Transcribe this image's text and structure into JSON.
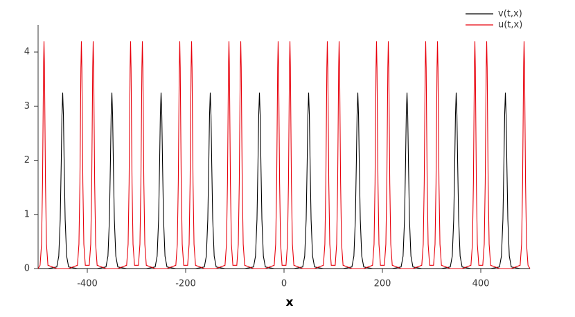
{
  "chart_data": {
    "type": "line",
    "xlabel": "x",
    "xlim": [
      -500,
      500
    ],
    "xticks": [
      -400,
      -200,
      0,
      200,
      400
    ],
    "ylim": [
      0,
      4.5
    ],
    "yticks": [
      0,
      1,
      2,
      3,
      4
    ],
    "legend": "top-right",
    "x": [
      -500,
      -496,
      -493,
      -491,
      -490,
      -489,
      -488,
      -487,
      -486,
      -485,
      -483,
      -480,
      -462,
      -458,
      -455,
      -453,
      -451.5,
      -450,
      -448.5,
      -447,
      -445,
      -442,
      -438,
      -420,
      -417,
      -415,
      -414,
      -413,
      -412,
      -411,
      -410,
      -409,
      -407,
      -404,
      -396,
      -393,
      -391,
      -390,
      -389,
      -388,
      -387,
      -386,
      -385,
      -383,
      -380,
      -362,
      -358,
      -355,
      -353,
      -351.5,
      -350,
      -348.5,
      -347,
      -345,
      -342,
      -338,
      -320,
      -317,
      -315,
      -314,
      -313,
      -312,
      -311,
      -310,
      -309,
      -307,
      -304,
      -296,
      -293,
      -291,
      -290,
      -289,
      -288,
      -287,
      -286,
      -285,
      -283,
      -280,
      -262,
      -258,
      -255,
      -253,
      -251.5,
      -250,
      -248.5,
      -247,
      -245,
      -242,
      -238,
      -220,
      -217,
      -215,
      -214,
      -213,
      -212,
      -211,
      -210,
      -209,
      -207,
      -204,
      -196,
      -193,
      -191,
      -190,
      -189,
      -188,
      -187,
      -186,
      -185,
      -183,
      -180,
      -162,
      -158,
      -155,
      -153,
      -151.5,
      -150,
      -148.5,
      -147,
      -145,
      -142,
      -138,
      -120,
      -117,
      -115,
      -114,
      -113,
      -112,
      -111,
      -110,
      -109,
      -107,
      -104,
      -96,
      -93,
      -91,
      -90,
      -89,
      -88,
      -87,
      -86,
      -85,
      -83,
      -80,
      -62,
      -58,
      -55,
      -53,
      -51.5,
      -50,
      -48.5,
      -47,
      -45,
      -42,
      -38,
      -20,
      -17,
      -15,
      -14,
      -13,
      -12,
      -11,
      -10,
      -9,
      -7,
      -4,
      4,
      7,
      9,
      10,
      11,
      12,
      13,
      14,
      15,
      17,
      20,
      38,
      42,
      45,
      47,
      48.5,
      50,
      51.5,
      53,
      55,
      58,
      62,
      80,
      83,
      85,
      86,
      87,
      88,
      89,
      90,
      91,
      93,
      96,
      104,
      107,
      109,
      110,
      111,
      112,
      113,
      114,
      115,
      117,
      120,
      138,
      142,
      145,
      147,
      148.5,
      150,
      151.5,
      153,
      155,
      158,
      162,
      180,
      183,
      185,
      186,
      187,
      188,
      189,
      190,
      191,
      193,
      196,
      204,
      207,
      209,
      210,
      211,
      212,
      213,
      214,
      215,
      217,
      220,
      238,
      242,
      245,
      247,
      248.5,
      250,
      251.5,
      253,
      255,
      258,
      262,
      280,
      283,
      285,
      286,
      287,
      288,
      289,
      290,
      291,
      293,
      296,
      304,
      307,
      309,
      310,
      311,
      312,
      313,
      314,
      315,
      317,
      320,
      338,
      342,
      345,
      347,
      348.5,
      350,
      351.5,
      353,
      355,
      358,
      362,
      380,
      383,
      385,
      386,
      387,
      388,
      389,
      390,
      391,
      393,
      396,
      404,
      407,
      409,
      410,
      411,
      412,
      413,
      414,
      415,
      417,
      420,
      438,
      442,
      445,
      447,
      448.5,
      450,
      451.5,
      453,
      455,
      458,
      462,
      480,
      483,
      485,
      486,
      487,
      488,
      489,
      490,
      491,
      493,
      496,
      500
    ],
    "series": [
      {
        "name": "v(t,x)",
        "color": "#000000",
        "values": [
          0,
          0,
          0,
          0,
          0,
          0,
          0,
          0,
          0,
          0,
          0,
          0,
          0.03,
          0.23,
          0.91,
          1.94,
          2.83,
          3.25,
          2.83,
          1.94,
          0.91,
          0.23,
          0.03,
          0,
          0,
          0,
          0,
          0,
          0,
          0,
          0,
          0,
          0,
          0,
          0,
          0,
          0,
          0,
          0,
          0,
          0,
          0,
          0,
          0,
          0,
          0.03,
          0.23,
          0.91,
          1.94,
          2.83,
          3.25,
          2.83,
          1.94,
          0.91,
          0.23,
          0.03,
          0,
          0,
          0,
          0,
          0,
          0,
          0,
          0,
          0,
          0,
          0,
          0,
          0,
          0,
          0,
          0,
          0,
          0,
          0,
          0,
          0,
          0,
          0.03,
          0.23,
          0.91,
          1.94,
          2.83,
          3.25,
          2.83,
          1.94,
          0.91,
          0.23,
          0.03,
          0,
          0,
          0,
          0,
          0,
          0,
          0,
          0,
          0,
          0,
          0,
          0,
          0,
          0,
          0,
          0,
          0,
          0,
          0,
          0,
          0,
          0,
          0.03,
          0.23,
          0.91,
          1.94,
          2.83,
          3.25,
          2.83,
          1.94,
          0.91,
          0.23,
          0.03,
          0,
          0,
          0,
          0,
          0,
          0,
          0,
          0,
          0,
          0,
          0,
          0,
          0,
          0,
          0,
          0,
          0,
          0,
          0,
          0,
          0,
          0,
          0.03,
          0.23,
          0.91,
          1.94,
          2.83,
          3.25,
          2.83,
          1.94,
          0.91,
          0.23,
          0.03,
          0,
          0,
          0,
          0,
          0,
          0,
          0,
          0,
          0,
          0,
          0,
          0,
          0,
          0,
          0,
          0,
          0,
          0,
          0,
          0,
          0,
          0,
          0.03,
          0.23,
          0.91,
          1.94,
          2.83,
          3.25,
          2.83,
          1.94,
          0.91,
          0.23,
          0.03,
          0,
          0,
          0,
          0,
          0,
          0,
          0,
          0,
          0,
          0,
          0,
          0,
          0,
          0,
          0,
          0,
          0,
          0,
          0,
          0,
          0,
          0,
          0.03,
          0.23,
          0.91,
          1.94,
          2.83,
          3.25,
          2.83,
          1.94,
          0.91,
          0.23,
          0.03,
          0,
          0,
          0,
          0,
          0,
          0,
          0,
          0,
          0,
          0,
          0,
          0,
          0,
          0,
          0,
          0,
          0,
          0,
          0,
          0,
          0,
          0,
          0.03,
          0.23,
          0.91,
          1.94,
          2.83,
          3.25,
          2.83,
          1.94,
          0.91,
          0.23,
          0.03,
          0,
          0,
          0,
          0,
          0,
          0,
          0,
          0,
          0,
          0,
          0,
          0,
          0,
          0,
          0,
          0,
          0,
          0,
          0,
          0,
          0,
          0,
          0.03,
          0.23,
          0.91,
          1.94,
          2.83,
          3.25,
          2.83,
          1.94,
          0.91,
          0.23,
          0.03,
          0,
          0,
          0,
          0,
          0,
          0,
          0,
          0,
          0,
          0,
          0,
          0,
          0,
          0,
          0,
          0,
          0,
          0,
          0,
          0,
          0,
          0,
          0.03,
          0.23,
          0.91,
          1.94,
          2.83,
          3.25,
          2.83,
          1.94,
          0.91,
          0.23,
          0.03,
          0,
          0,
          0,
          0,
          0,
          0,
          0,
          0,
          0,
          0,
          0,
          0
        ]
      },
      {
        "name": "u(t,x)",
        "color": "#e8000b",
        "values": [
          0,
          0.06,
          0.45,
          1.58,
          2.62,
          3.71,
          4.2,
          3.71,
          2.62,
          1.58,
          0.45,
          0.06,
          0,
          0,
          0,
          0,
          0,
          0,
          0,
          0,
          0,
          0,
          0,
          0.06,
          0.45,
          1.58,
          2.62,
          3.71,
          4.2,
          3.71,
          2.62,
          1.58,
          0.45,
          0.06,
          0.06,
          0.45,
          1.58,
          2.62,
          3.71,
          4.2,
          3.71,
          2.62,
          1.58,
          0.45,
          0.06,
          0,
          0,
          0,
          0,
          0,
          0,
          0,
          0,
          0,
          0,
          0,
          0.06,
          0.45,
          1.58,
          2.62,
          3.71,
          4.2,
          3.71,
          2.62,
          1.58,
          0.45,
          0.06,
          0.06,
          0.45,
          1.58,
          2.62,
          3.71,
          4.2,
          3.71,
          2.62,
          1.58,
          0.45,
          0.06,
          0,
          0,
          0,
          0,
          0,
          0,
          0,
          0,
          0,
          0,
          0,
          0.06,
          0.45,
          1.58,
          2.62,
          3.71,
          4.2,
          3.71,
          2.62,
          1.58,
          0.45,
          0.06,
          0.06,
          0.45,
          1.58,
          2.62,
          3.71,
          4.2,
          3.71,
          2.62,
          1.58,
          0.45,
          0.06,
          0,
          0,
          0,
          0,
          0,
          0,
          0,
          0,
          0,
          0,
          0,
          0.06,
          0.45,
          1.58,
          2.62,
          3.71,
          4.2,
          3.71,
          2.62,
          1.58,
          0.45,
          0.06,
          0.06,
          0.45,
          1.58,
          2.62,
          3.71,
          4.2,
          3.71,
          2.62,
          1.58,
          0.45,
          0.06,
          0,
          0,
          0,
          0,
          0,
          0,
          0,
          0,
          0,
          0,
          0,
          0.06,
          0.45,
          1.58,
          2.62,
          3.71,
          4.2,
          3.71,
          2.62,
          1.58,
          0.45,
          0.06,
          0.06,
          0.45,
          1.58,
          2.62,
          3.71,
          4.2,
          3.71,
          2.62,
          1.58,
          0.45,
          0.06,
          0,
          0,
          0,
          0,
          0,
          0,
          0,
          0,
          0,
          0,
          0,
          0.06,
          0.45,
          1.58,
          2.62,
          3.71,
          4.2,
          3.71,
          2.62,
          1.58,
          0.45,
          0.06,
          0.06,
          0.45,
          1.58,
          2.62,
          3.71,
          4.2,
          3.71,
          2.62,
          1.58,
          0.45,
          0.06,
          0,
          0,
          0,
          0,
          0,
          0,
          0,
          0,
          0,
          0,
          0,
          0.06,
          0.45,
          1.58,
          2.62,
          3.71,
          4.2,
          3.71,
          2.62,
          1.58,
          0.45,
          0.06,
          0.06,
          0.45,
          1.58,
          2.62,
          3.71,
          4.2,
          3.71,
          2.62,
          1.58,
          0.45,
          0.06,
          0,
          0,
          0,
          0,
          0,
          0,
          0,
          0,
          0,
          0,
          0,
          0.06,
          0.45,
          1.58,
          2.62,
          3.71,
          4.2,
          3.71,
          2.62,
          1.58,
          0.45,
          0.06,
          0.06,
          0.45,
          1.58,
          2.62,
          3.71,
          4.2,
          3.71,
          2.62,
          1.58,
          0.45,
          0.06,
          0,
          0,
          0,
          0,
          0,
          0,
          0,
          0,
          0,
          0,
          0,
          0.06,
          0.45,
          1.58,
          2.62,
          3.71,
          4.2,
          3.71,
          2.62,
          1.58,
          0.45,
          0.06,
          0.06,
          0.45,
          1.58,
          2.62,
          3.71,
          4.2,
          3.71,
          2.62,
          1.58,
          0.45,
          0.06,
          0,
          0,
          0,
          0,
          0,
          0,
          0,
          0,
          0,
          0,
          0,
          0.06,
          0.45,
          1.58,
          2.62,
          3.71,
          4.2,
          3.71,
          2.62,
          1.58,
          0.45,
          0.06,
          0
        ]
      }
    ]
  }
}
